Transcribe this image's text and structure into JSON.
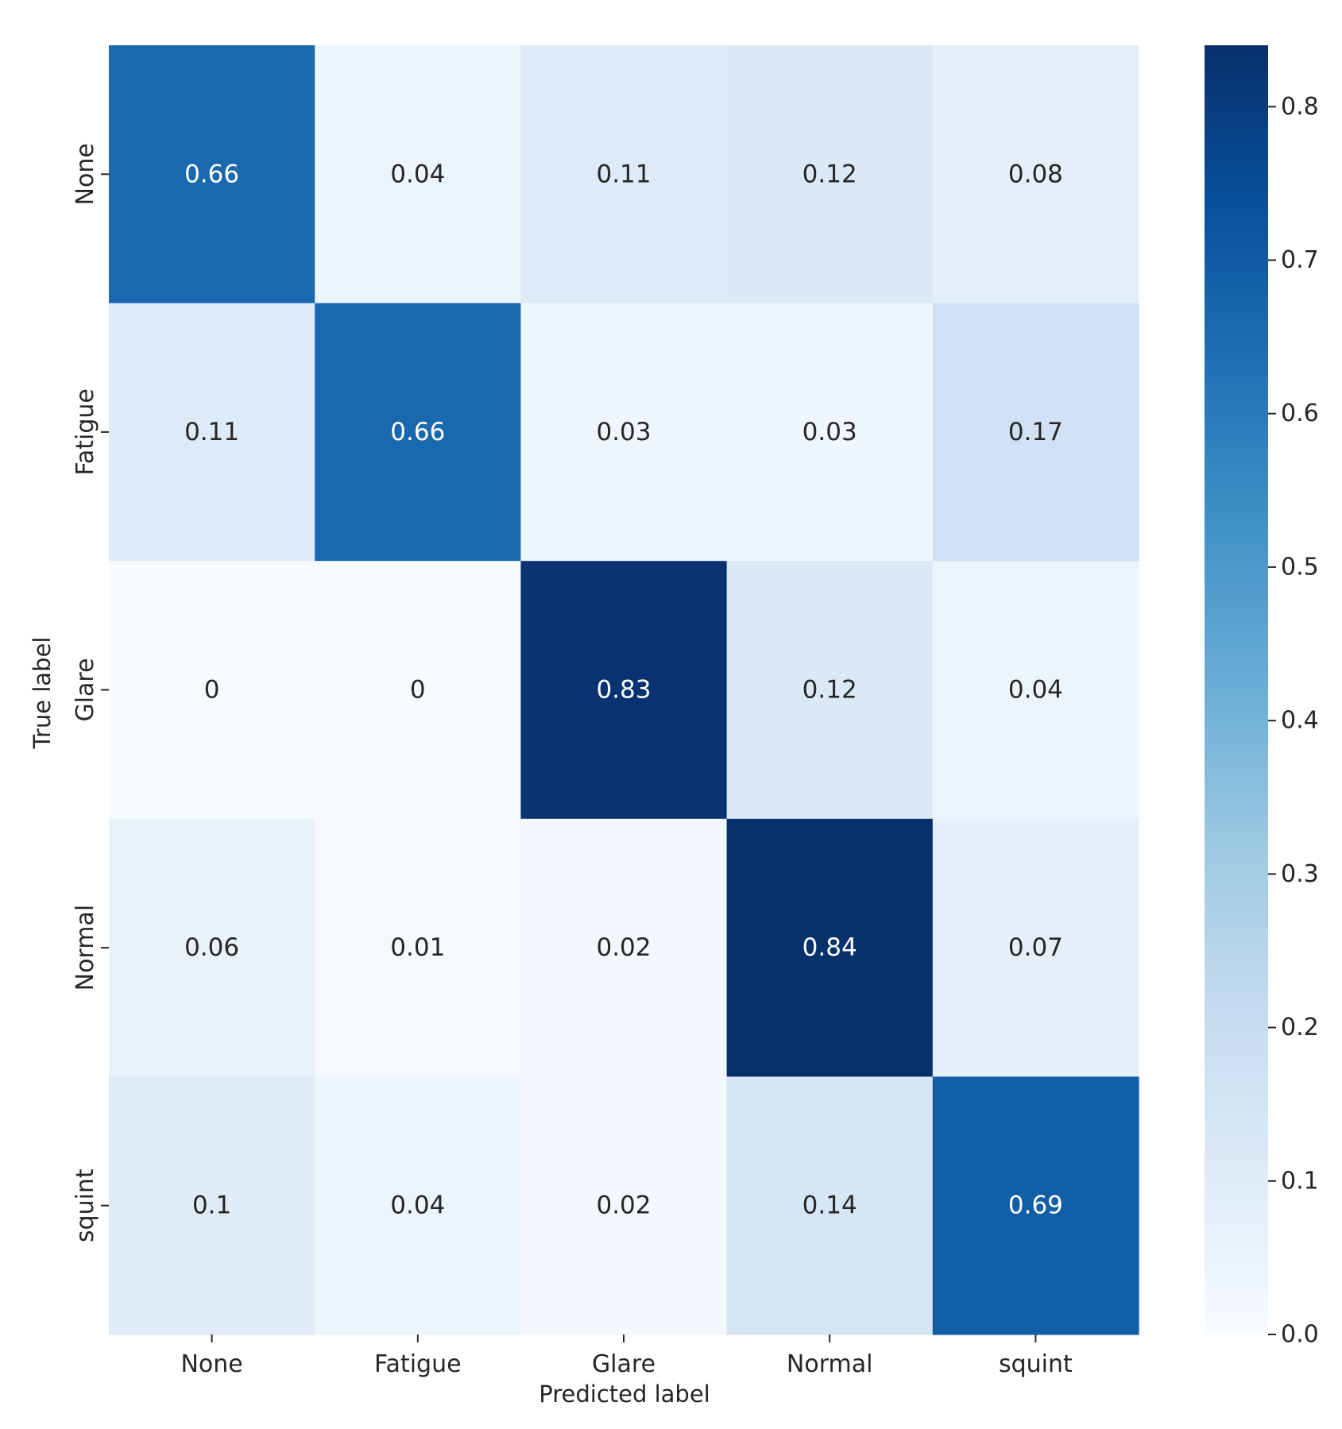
{
  "chart_data": {
    "type": "heatmap",
    "title": "",
    "xlabel": "Predicted label",
    "ylabel": "True label",
    "x_categories": [
      "None",
      "Fatigue",
      "Glare",
      "Normal",
      "squint"
    ],
    "y_categories": [
      "None",
      "Fatigue",
      "Glare",
      "Normal",
      "squint"
    ],
    "values": [
      [
        0.66,
        0.04,
        0.11,
        0.12,
        0.08
      ],
      [
        0.11,
        0.66,
        0.03,
        0.03,
        0.17
      ],
      [
        0,
        0,
        0.83,
        0.12,
        0.04
      ],
      [
        0.06,
        0.01,
        0.02,
        0.84,
        0.07
      ],
      [
        0.1,
        0.04,
        0.02,
        0.14,
        0.69
      ]
    ],
    "cell_labels": [
      [
        "0.66",
        "0.04",
        "0.11",
        "0.12",
        "0.08"
      ],
      [
        "0.11",
        "0.66",
        "0.03",
        "0.03",
        "0.17"
      ],
      [
        "0",
        "0",
        "0.83",
        "0.12",
        "0.04"
      ],
      [
        "0.06",
        "0.01",
        "0.02",
        "0.84",
        "0.07"
      ],
      [
        "0.1",
        "0.04",
        "0.02",
        "0.14",
        "0.69"
      ]
    ],
    "colormap": "Blues",
    "colorbar": {
      "range": [
        0,
        0.84
      ],
      "ticks": [
        0.0,
        0.1,
        0.2,
        0.3,
        0.4,
        0.5,
        0.6,
        0.7,
        0.8
      ],
      "tick_labels": [
        "0.0",
        "0.1",
        "0.2",
        "0.3",
        "0.4",
        "0.5",
        "0.6",
        "0.7",
        "0.8"
      ]
    },
    "grid": false,
    "legend": "colorbar-right"
  }
}
